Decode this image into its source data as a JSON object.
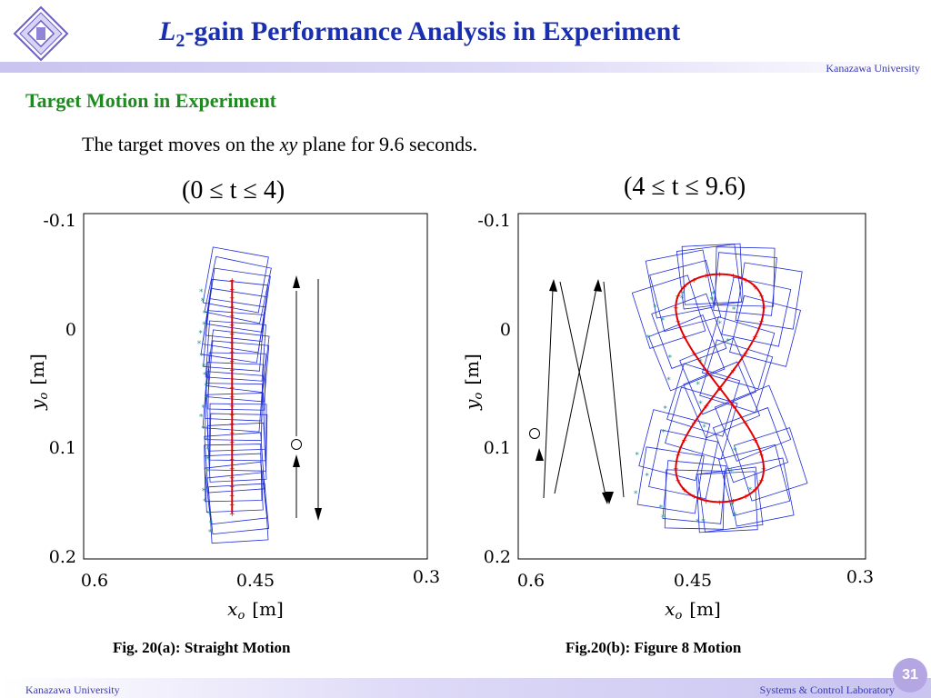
{
  "header": {
    "title_var": "L",
    "title_sub": "2",
    "title_rest": "-gain Performance Analysis in Experiment",
    "university": "Kanazawa University"
  },
  "section_title": "Target Motion in Experiment",
  "description": {
    "pre": "The target moves on the ",
    "var": "xy",
    "post": " plane for 9.6 seconds."
  },
  "figures": [
    {
      "range_label": "(0 ≤ t ≤ 4)",
      "caption": "Fig. 20(a): Straight Motion",
      "y_tick_labels": [
        "-0.1",
        "0",
        "0.1",
        "0.2"
      ],
      "x_tick_labels": [
        "0.6",
        "0.45",
        "0.3"
      ],
      "ylabel_var": "y",
      "ylabel_sub": "o",
      "ylabel_unit": "[m]",
      "xlabel_var": "x",
      "xlabel_sub": "o",
      "xlabel_unit": "[m]"
    },
    {
      "range_label": "(4 ≤ t ≤ 9.6)",
      "caption": "Fig.20(b): Figure 8 Motion",
      "y_tick_labels": [
        "-0.1",
        "0",
        "0.1",
        "0.2"
      ],
      "x_tick_labels": [
        "0.6",
        "0.45",
        "0.3"
      ],
      "ylabel_var": "y",
      "ylabel_sub": "o",
      "ylabel_unit": "[m]",
      "xlabel_var": "x",
      "xlabel_sub": "o",
      "xlabel_unit": "[m]"
    }
  ],
  "chart_data": [
    {
      "type": "line",
      "title": "",
      "xlabel": "x_o [m]",
      "ylabel": "y_o [m]",
      "xlim": [
        0.6,
        0.3
      ],
      "ylim": [
        -0.1,
        0.2
      ],
      "x_ticks": [
        0.6,
        0.45,
        0.3
      ],
      "y_ticks": [
        -0.1,
        0,
        0.1,
        0.2
      ],
      "grid": false,
      "series": [
        {
          "color": "#e00000",
          "x": [
            0.476,
            0.476
          ],
          "y": [
            -0.045,
            0.16
          ]
        }
      ],
      "square_color": "#1e2bd6",
      "marker_color": "#1a9a8a",
      "start_marker": [
        0.38,
        0.1
      ]
    },
    {
      "type": "line",
      "title": "",
      "xlabel": "x_o [m]",
      "ylabel": "y_o [m]",
      "xlim": [
        0.6,
        0.3
      ],
      "ylim": [
        -0.1,
        0.2
      ],
      "x_ticks": [
        0.6,
        0.45,
        0.3
      ],
      "y_ticks": [
        -0.1,
        0,
        0.1,
        0.2
      ],
      "grid": false,
      "series": [
        {
          "color": "#e00000",
          "shape": "figure-8",
          "x_range": [
            0.39,
            0.47
          ],
          "y_range": [
            -0.05,
            0.15
          ]
        }
      ],
      "square_color": "#1e2bd6",
      "marker_color": "#1a9a8a",
      "start_marker": [
        0.58,
        0.09
      ]
    }
  ],
  "footer": {
    "left": "Kanazawa University",
    "right": "Systems & Control Laboratory",
    "page": "31"
  },
  "colors": {
    "title": "#1a2fb0",
    "section": "#1f8a1f",
    "footer_text": "#3a3ab0",
    "badge": "#b4a6e3"
  }
}
